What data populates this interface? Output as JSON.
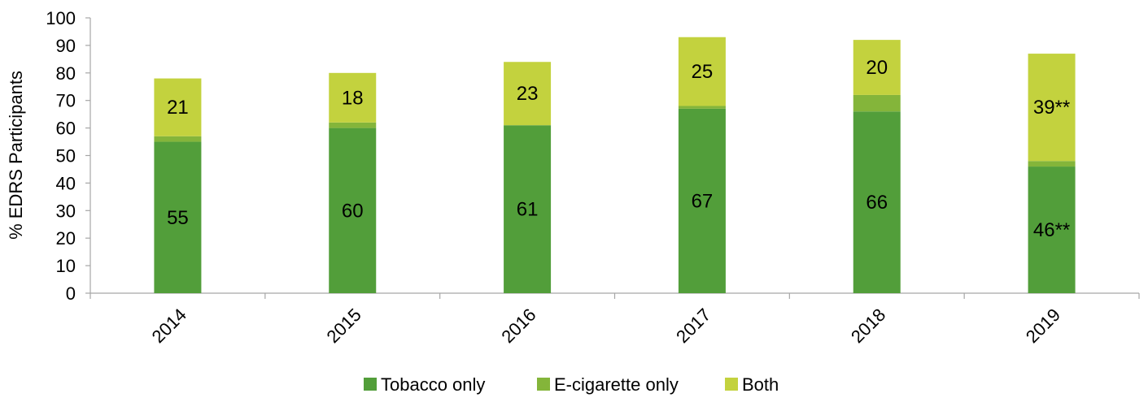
{
  "chart_data": {
    "type": "bar",
    "stacked": true,
    "title": "",
    "xlabel": "",
    "ylabel": "% EDRS Participants",
    "ylim": [
      0,
      100
    ],
    "yticks": [
      0,
      10,
      20,
      30,
      40,
      50,
      60,
      70,
      80,
      90,
      100
    ],
    "categories": [
      "2014",
      "2015",
      "2016",
      "2017",
      "2018",
      "2019"
    ],
    "series": [
      {
        "name": "Tobacco only",
        "color": "#529e3a",
        "values": [
          55,
          60,
          61,
          67,
          66,
          46
        ],
        "labels": [
          "55",
          "60",
          "61",
          "67",
          "66",
          "46**"
        ]
      },
      {
        "name": "E-cigarette only",
        "color": "#84b53a",
        "values": [
          2,
          2,
          0,
          1,
          6,
          2
        ],
        "labels": [
          "",
          "",
          "",
          "",
          "",
          ""
        ]
      },
      {
        "name": "Both",
        "color": "#c3d23e",
        "values": [
          21,
          18,
          23,
          25,
          20,
          39
        ],
        "labels": [
          "21",
          "18",
          "23",
          "25",
          "20",
          "39**"
        ]
      }
    ],
    "grid": false,
    "legend_position": "bottom"
  }
}
